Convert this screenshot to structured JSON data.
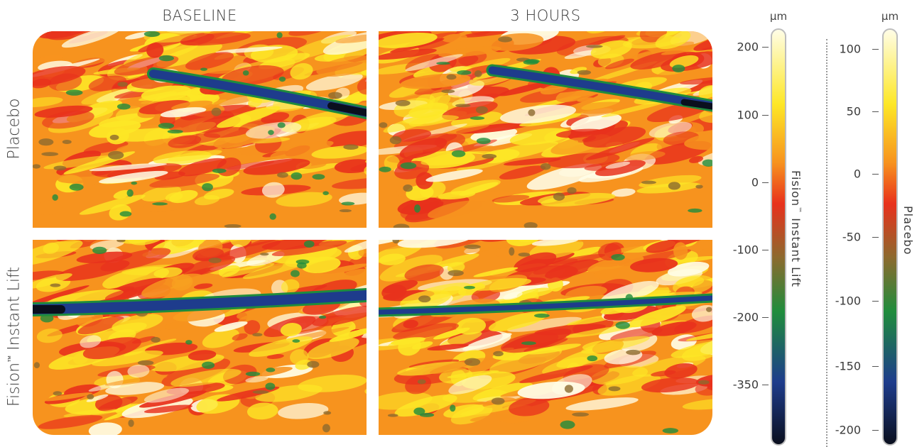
{
  "columns": {
    "baseline": "BASELINE",
    "three_hours": "3 HOURS"
  },
  "rows": {
    "placebo": "Placebo",
    "fision_name": "Fision",
    "fision_tm": "™",
    "fision_rest": " Instant Lift"
  },
  "scale1": {
    "unit": "µm",
    "ticks": [
      "200",
      "100",
      "0",
      "-100",
      "-200",
      "-350"
    ],
    "title_name": "Fision",
    "title_tm": "™",
    "title_rest": " Instant Lift"
  },
  "scale2": {
    "unit": "µm",
    "ticks": [
      "100",
      "50",
      "0",
      "-50",
      "-100",
      "-150",
      "-200"
    ],
    "title": "Placebo"
  },
  "colors": {
    "high": "#fffde6",
    "yellow": "#fde726",
    "orange": "#f7931e",
    "red": "#e8311c",
    "brown": "#8c6a2e",
    "green": "#1f8c3c",
    "blue": "#1e3c8c",
    "dark": "#0a0f1e"
  }
}
